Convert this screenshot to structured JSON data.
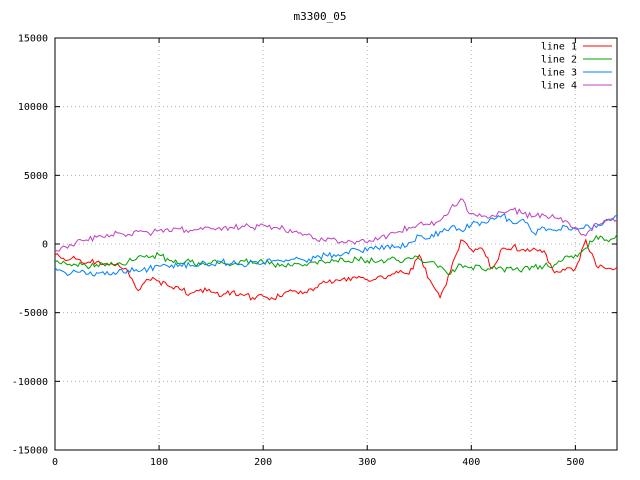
{
  "chart_data": {
    "type": "line",
    "title": "m3300_05",
    "xlabel": "",
    "ylabel": "",
    "xlim": [
      0,
      540
    ],
    "ylim": [
      -15000,
      15000
    ],
    "x_ticks": [
      0,
      100,
      200,
      300,
      400,
      500
    ],
    "y_ticks": [
      -15000,
      -10000,
      -5000,
      0,
      5000,
      10000,
      15000
    ],
    "grid": true,
    "legend_position": "top-right",
    "x_step": 10,
    "series": [
      {
        "name": "line 1",
        "color": "#ff0000",
        "values": [
          -800,
          -1200,
          -1100,
          -1400,
          -1300,
          -1500,
          -1400,
          -2000,
          -3400,
          -2600,
          -2700,
          -3100,
          -3300,
          -3600,
          -3300,
          -3500,
          -3800,
          -3500,
          -3700,
          -3900,
          -3800,
          -4000,
          -3600,
          -3400,
          -3500,
          -3200,
          -2800,
          -2600,
          -2700,
          -2500,
          -2600,
          -2400,
          -2300,
          -2100,
          -2200,
          -800,
          -2600,
          -3900,
          -2000,
          300,
          -400,
          -300,
          -1800,
          -300,
          -200,
          -400,
          -300,
          -500,
          -2100,
          -1900,
          -1800,
          300,
          -1600,
          -1800,
          -1700
        ]
      },
      {
        "name": "line 2",
        "color": "#00a000",
        "values": [
          -1300,
          -1400,
          -1500,
          -1600,
          -1500,
          -1400,
          -1500,
          -1300,
          -900,
          -1000,
          -800,
          -1200,
          -1400,
          -1300,
          -1500,
          -1400,
          -1300,
          -1500,
          -1200,
          -1400,
          -1300,
          -1500,
          -1600,
          -1400,
          -1500,
          -1300,
          -1400,
          -1200,
          -1300,
          -1100,
          -1200,
          -1300,
          -1100,
          -1200,
          -1000,
          -1100,
          -1300,
          -1600,
          -2200,
          -1500,
          -1700,
          -1800,
          -1700,
          -1800,
          -1900,
          -1800,
          -1700,
          -1600,
          -1500,
          -900,
          -800,
          -300,
          600,
          300,
          700
        ]
      },
      {
        "name": "line 3",
        "color": "#0080ff",
        "values": [
          -1700,
          -2100,
          -2000,
          -2200,
          -2100,
          -2000,
          -2100,
          -1900,
          -2000,
          -1800,
          -1600,
          -1700,
          -1500,
          -1600,
          -1400,
          -1500,
          -1300,
          -1400,
          -1500,
          -1300,
          -1400,
          -1200,
          -1300,
          -1100,
          -1200,
          -1000,
          -800,
          -900,
          -600,
          -400,
          -500,
          -300,
          -100,
          -200,
          100,
          600,
          400,
          900,
          1200,
          1000,
          1400,
          1600,
          1900,
          2100,
          1500,
          1800,
          800,
          1200,
          1000,
          1300,
          1100,
          1400,
          1200,
          1800,
          2100
        ]
      },
      {
        "name": "line 4",
        "color": "#c040c0",
        "values": [
          -400,
          -200,
          100,
          300,
          500,
          700,
          800,
          700,
          900,
          800,
          1000,
          900,
          1100,
          1000,
          1200,
          1100,
          1000,
          1200,
          1300,
          1200,
          1400,
          1200,
          1100,
          900,
          700,
          400,
          200,
          300,
          100,
          200,
          100,
          300,
          600,
          900,
          1200,
          1500,
          1400,
          1700,
          2600,
          3300,
          2200,
          2000,
          2100,
          2300,
          2500,
          2200,
          2000,
          2100,
          1900,
          1700,
          1200,
          600,
          1500,
          1700,
          1800
        ]
      }
    ]
  },
  "colors": {
    "background": "#ffffff",
    "border": "#000000",
    "grid": "#b4b4b4",
    "text": "#000000"
  }
}
